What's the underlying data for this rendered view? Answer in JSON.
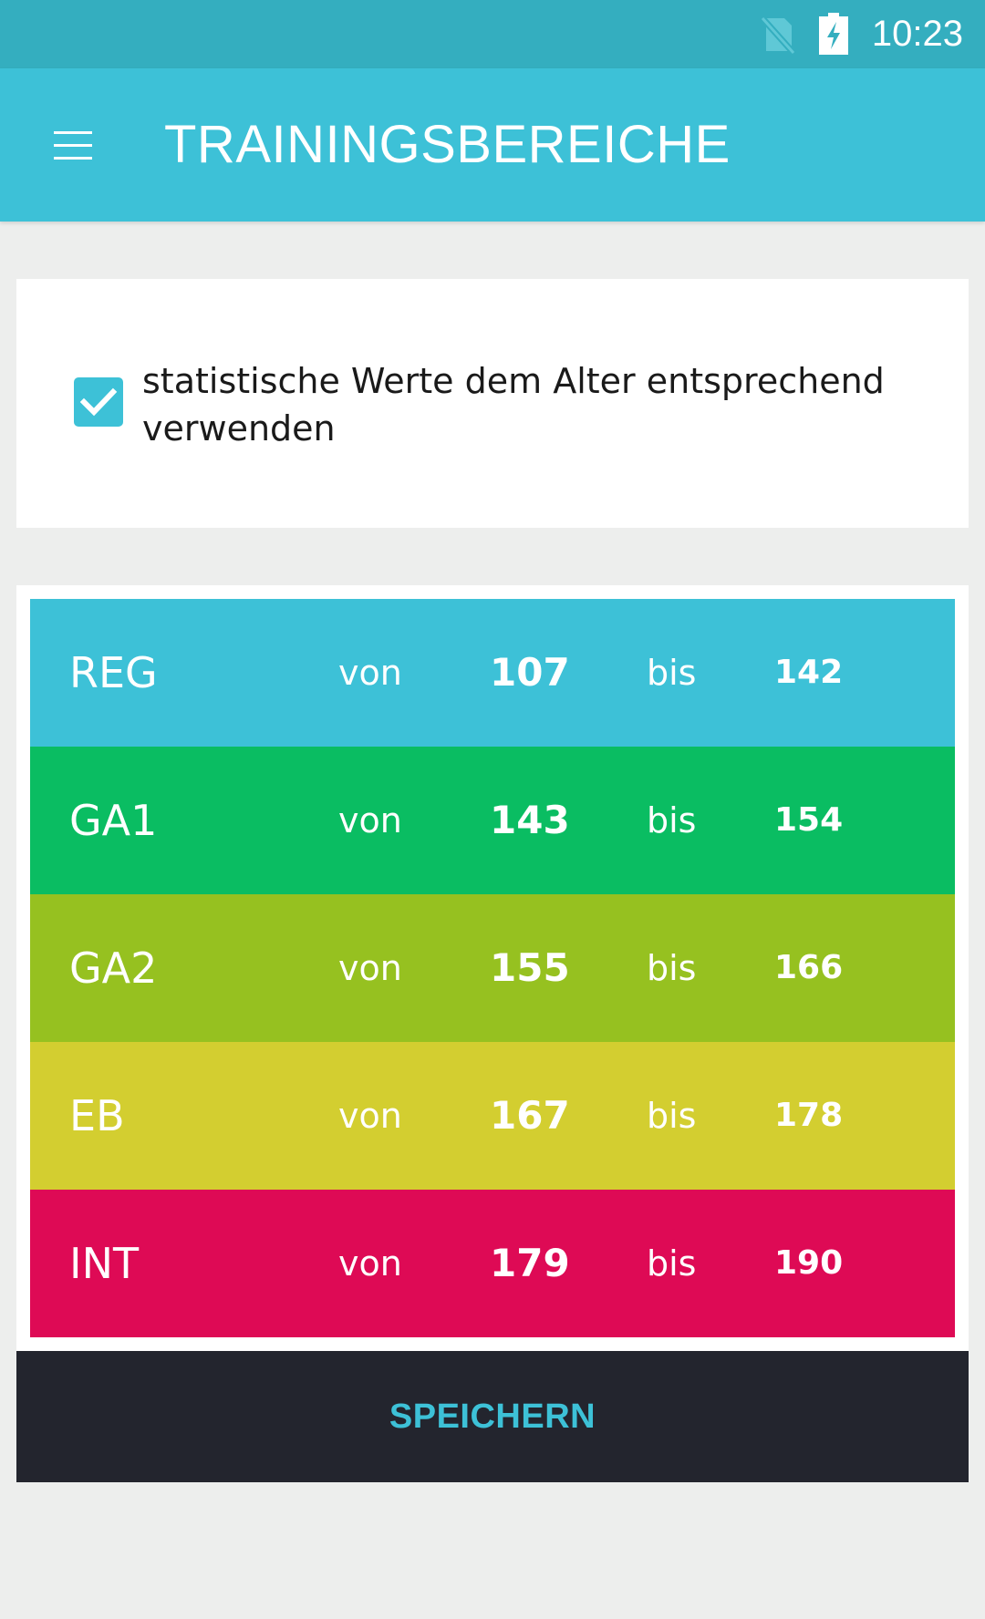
{
  "status_bar": {
    "time": "10:23",
    "icons": [
      "no-sim-icon",
      "battery-charging-icon"
    ]
  },
  "app_bar": {
    "title": "TRAININGSBEREICHE",
    "menu_icon": "hamburger-menu-icon"
  },
  "settings": {
    "age_based_label": "statistische Werte dem Alter entsprechend verwenden",
    "age_based_checked": true
  },
  "zones": [
    {
      "name": "REG",
      "von_label": "von",
      "from": "107",
      "bis_label": "bis",
      "to": "142",
      "color": "#3dc1d7"
    },
    {
      "name": "GA1",
      "von_label": "von",
      "from": "143",
      "bis_label": "bis",
      "to": "154",
      "color": "#0abd62"
    },
    {
      "name": "GA2",
      "von_label": "von",
      "from": "155",
      "bis_label": "bis",
      "to": "166",
      "color": "#96c120"
    },
    {
      "name": "EB",
      "von_label": "von",
      "from": "167",
      "bis_label": "bis",
      "to": "178",
      "color": "#d3ce30"
    },
    {
      "name": "INT",
      "von_label": "von",
      "from": "179",
      "bis_label": "bis",
      "to": "190",
      "color": "#de0a55"
    }
  ],
  "actions": {
    "save_label": "SPEICHERN"
  },
  "colors": {
    "status_bar": "#34aebf",
    "app_bar": "#3dc1d7",
    "save_button_bg": "#23252e",
    "save_button_text": "#3dc1d7"
  }
}
